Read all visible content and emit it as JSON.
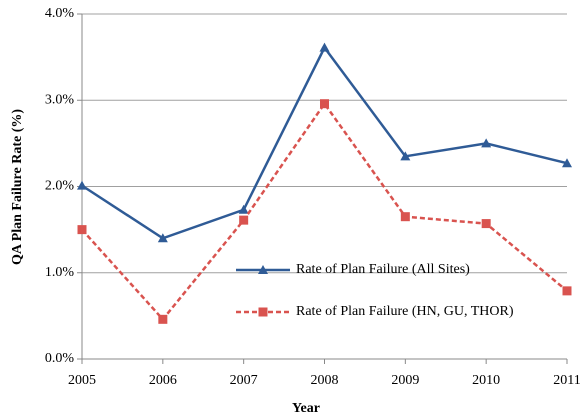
{
  "chart_data": {
    "type": "line",
    "x_label": "Year",
    "y_label": "QA Plan Failure Rate (%)",
    "x": [
      2005,
      2006,
      2007,
      2008,
      2009,
      2010,
      2011
    ],
    "xlim": [
      2005,
      2011
    ],
    "xticks": [
      2005,
      2006,
      2007,
      2008,
      2009,
      2010,
      2011
    ],
    "ylim": [
      0,
      4
    ],
    "yticks": [
      {
        "value": 0,
        "label": "0.0%"
      },
      {
        "value": 1,
        "label": "1.0%"
      },
      {
        "value": 2,
        "label": "2.0%"
      },
      {
        "value": 3,
        "label": "3.0%"
      },
      {
        "value": 4,
        "label": "4.0%"
      }
    ],
    "grid": true,
    "series": [
      {
        "name": "Rate of Plan Failure (All Sites)",
        "color": "#2f5b96",
        "marker": "triangle",
        "line_style": "solid",
        "values": [
          2.01,
          1.4,
          1.73,
          3.61,
          2.35,
          2.5,
          2.27
        ]
      },
      {
        "name": "Rate of Plan Failure (HN, GU, THOR)",
        "color": "#d9534f",
        "marker": "square",
        "line_style": "dashed",
        "values": [
          1.5,
          0.46,
          1.61,
          2.96,
          1.65,
          1.57,
          0.79
        ]
      }
    ]
  }
}
